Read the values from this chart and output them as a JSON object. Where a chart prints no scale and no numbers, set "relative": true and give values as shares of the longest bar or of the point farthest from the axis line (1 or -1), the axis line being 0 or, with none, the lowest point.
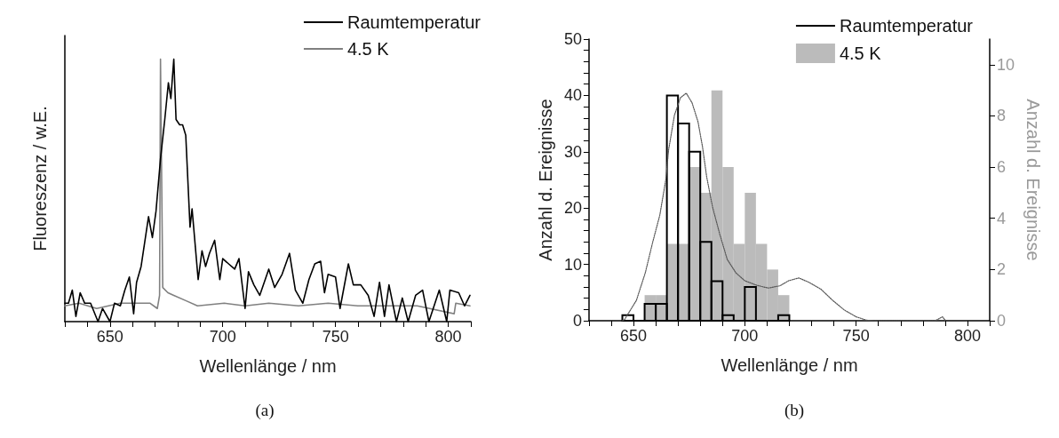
{
  "chart_data": [
    {
      "type": "line",
      "relative": true,
      "xlabel": "Wellenlänge / nm",
      "ylabel": "Fluoreszenz / w.E.",
      "annotations": [
        "(a)"
      ],
      "xlim": [
        630,
        810
      ],
      "xticks": [
        {
          "value": 630,
          "label": null
        },
        {
          "value": 640,
          "label": null
        },
        650,
        {
          "value": 660,
          "label": null
        },
        {
          "value": 670,
          "label": null
        },
        {
          "value": 680,
          "label": null
        },
        {
          "value": 690,
          "label": null
        },
        700,
        {
          "value": 710,
          "label": null
        },
        {
          "value": 720,
          "label": null
        },
        {
          "value": 730,
          "label": null
        },
        {
          "value": 740,
          "label": null
        },
        750,
        {
          "value": 760,
          "label": null
        },
        {
          "value": 770,
          "label": null
        },
        {
          "value": 780,
          "label": null
        },
        {
          "value": 790,
          "label": null
        },
        800,
        {
          "value": 810,
          "label": null
        }
      ],
      "tick_labels": "x",
      "legend": "top right",
      "marker": "none",
      "line_style": "solid",
      "series": [
        {
          "name": "Raumtemperatur",
          "color": "#000000",
          "x": [
            630,
            631.6,
            633.3,
            634.9,
            636.8,
            638.8,
            641.4,
            644.7,
            646.7,
            650,
            652,
            654.6,
            656.6,
            658.6,
            660.5,
            661.8,
            663.8,
            667.1,
            668.8,
            670.4,
            672.4,
            674.3,
            675.9,
            677,
            678.3,
            679.3,
            680.9,
            682.2,
            683.6,
            685.5,
            686.4,
            689.1,
            690.8,
            692.4,
            694.1,
            696.4,
            698.7,
            700,
            702.6,
            705.3,
            707.2,
            709.9,
            711.4,
            713.8,
            716.4,
            720.4,
            723,
            726.3,
            729.6,
            732.2,
            735.5,
            738.2,
            740.8,
            743.4,
            745.1,
            746.7,
            750,
            752,
            755.7,
            757.9,
            761.2,
            764.5,
            767.1,
            769.5,
            771.7,
            773.7,
            777,
            779.6,
            782.2,
            785.5,
            788.6,
            791.4,
            796,
            799.3,
            800.7,
            804.6,
            807.2,
            809.6
          ],
          "values": [
            0.07,
            0.07,
            0.12,
            0.02,
            0.11,
            0.07,
            0.07,
            0.0,
            0.05,
            0.0,
            0.07,
            0.06,
            0.12,
            0.17,
            0.03,
            0.15,
            0.21,
            0.4,
            0.32,
            0.42,
            0.62,
            0.77,
            0.91,
            0.85,
            1,
            0.77,
            0.75,
            0.75,
            0.71,
            0.36,
            0.43,
            0.16,
            0.27,
            0.21,
            0.26,
            0.31,
            0.16,
            0.24,
            0.22,
            0.2,
            0.24,
            0.05,
            0.19,
            0.14,
            0.1,
            0.2,
            0.13,
            0.18,
            0.26,
            0.12,
            0.07,
            0.16,
            0.22,
            0.23,
            0.11,
            0.18,
            0.17,
            0.05,
            0.22,
            0.14,
            0.14,
            0.1,
            0.02,
            0.15,
            0.02,
            0.14,
            0.0,
            0.09,
            0.0,
            0.1,
            0.12,
            0.0,
            0.12,
            0.0,
            0.12,
            0.11,
            0.06,
            0.1
          ]
        },
        {
          "name": "4.5 K",
          "color": "#808080",
          "x": [
            630,
            636.3,
            644.1,
            654.6,
            667.8,
            671,
            672,
            672.4,
            672.6,
            673.4,
            675.7,
            678.3,
            683.6,
            688.8,
            700.7,
            709.9,
            720.4,
            733.6,
            746.7,
            759.9,
            773,
            786.2,
            802.6,
            803.3,
            809.6
          ],
          "values": [
            0.06,
            0.07,
            0.05,
            0.07,
            0.07,
            0.05,
            0.1,
            1,
            1,
            0.13,
            0.11,
            0.1,
            0.08,
            0.06,
            0.07,
            0.06,
            0.07,
            0.06,
            0.07,
            0.06,
            0.06,
            0.06,
            0.03,
            0.07,
            0.06
          ]
        }
      ]
    },
    {
      "type": "histogram",
      "xlabel": "Wellenlänge / nm",
      "ylabel": "Anzahl d. Ereignisse",
      "y2label": "Anzahl d. Ereignisse",
      "annotations": [
        "(b)"
      ],
      "xlim": [
        630,
        810
      ],
      "xticks": [
        {
          "value": 630,
          "label": null
        },
        {
          "value": 640,
          "label": null
        },
        650,
        {
          "value": 660,
          "label": null
        },
        {
          "value": 670,
          "label": null
        },
        {
          "value": 680,
          "label": null
        },
        {
          "value": 690,
          "label": null
        },
        700,
        {
          "value": 710,
          "label": null
        },
        {
          "value": 720,
          "label": null
        },
        {
          "value": 730,
          "label": null
        },
        {
          "value": 740,
          "label": null
        },
        750,
        {
          "value": 760,
          "label": null
        },
        {
          "value": 770,
          "label": null
        },
        {
          "value": 780,
          "label": null
        },
        {
          "value": 790,
          "label": null
        },
        800,
        {
          "value": 810,
          "label": null
        }
      ],
      "ylim": [
        0,
        50
      ],
      "yticks": [
        0,
        {
          "value": 2,
          "label": null
        },
        {
          "value": 4,
          "label": null
        },
        {
          "value": 6,
          "label": null
        },
        {
          "value": 8,
          "label": null
        },
        10,
        {
          "value": 12,
          "label": null
        },
        {
          "value": 14,
          "label": null
        },
        {
          "value": 16,
          "label": null
        },
        {
          "value": 18,
          "label": null
        },
        20,
        {
          "value": 22,
          "label": null
        },
        {
          "value": 24,
          "label": null
        },
        {
          "value": 26,
          "label": null
        },
        {
          "value": 28,
          "label": null
        },
        30,
        {
          "value": 32,
          "label": null
        },
        {
          "value": 34,
          "label": null
        },
        {
          "value": 36,
          "label": null
        },
        {
          "value": 38,
          "label": null
        },
        40,
        {
          "value": 42,
          "label": null
        },
        {
          "value": 44,
          "label": null
        },
        {
          "value": 46,
          "label": null
        },
        {
          "value": 48,
          "label": null
        },
        50
      ],
      "y2lim": [
        0,
        11
      ],
      "y2ticks": [
        0,
        2,
        4,
        6,
        8,
        10
      ],
      "legend": "top right",
      "bins": [
        645,
        650,
        655,
        660,
        665,
        670,
        675,
        680,
        685,
        690,
        695,
        700,
        705,
        710,
        715,
        720
      ],
      "series": [
        {
          "name": "Raumtemperatur",
          "color": "#000000",
          "line_style": "solid",
          "values": [
            1,
            0,
            3,
            3,
            40,
            35,
            30,
            14,
            7,
            1,
            0,
            6,
            0,
            0,
            1
          ]
        },
        {
          "name": "4.5 K",
          "color": "#bbbbbb",
          "axis": "y2",
          "values": [
            0,
            0,
            1,
            1,
            3,
            3,
            6,
            5,
            9,
            6,
            3,
            5,
            3,
            2,
            1
          ]
        },
        {
          "type": "line",
          "color": "#555555",
          "line_style": "dotted",
          "marker": "none",
          "x": [
            645,
            646,
            648,
            651.3,
            655.3,
            658.6,
            661.8,
            664.5,
            665.8,
            668.4,
            671.1,
            673.7,
            676.3,
            679,
            681,
            682.9,
            685.5,
            688.8,
            692.1,
            696,
            700,
            705.3,
            710.5,
            715.8,
            719.7,
            724.3,
            728.9,
            734.2,
            739.5,
            744.7,
            750,
            754.6,
            757.9,
            785.5,
            788.8,
            790
          ],
          "values": [
            0,
            0.2,
            1.5,
            3.6,
            8.5,
            13.9,
            18.7,
            25,
            30.4,
            36.5,
            39.6,
            40.4,
            38.7,
            35.3,
            30.9,
            25.5,
            20.2,
            15.3,
            10.9,
            8.5,
            7.1,
            6.3,
            5.8,
            6.2,
            7.1,
            7.6,
            6.8,
            5.6,
            3.6,
            1.9,
            0.7,
            0.1,
            0,
            0,
            0.7,
            0.1
          ]
        }
      ]
    }
  ]
}
